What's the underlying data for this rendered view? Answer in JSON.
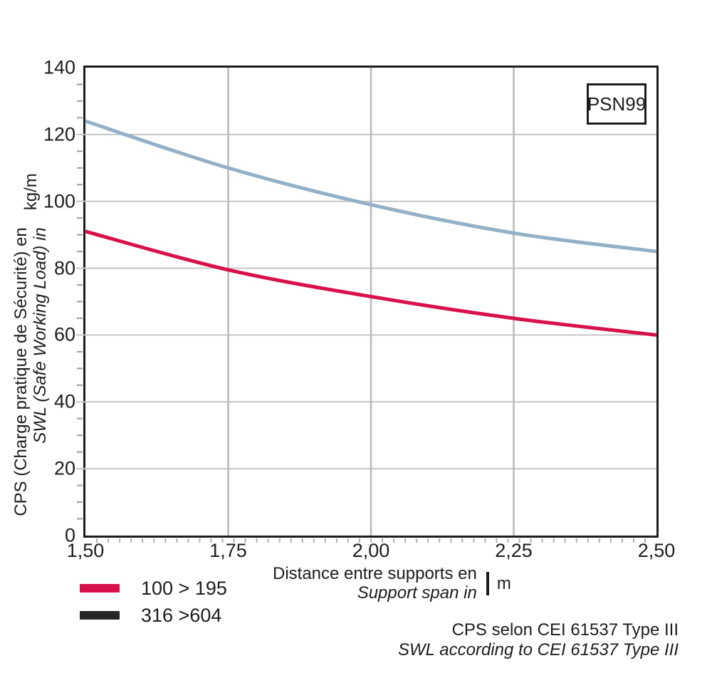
{
  "title_box": {
    "label": "PSN99"
  },
  "y_axis": {
    "label_line1": "CPS (Charge pratique de Sécurité) en",
    "label_line2": "SWL (Safe Working Load) in",
    "unit": "kg/m",
    "ticks": [
      "140",
      "120",
      "100",
      "80",
      "60",
      "40",
      "20",
      "0"
    ]
  },
  "x_axis": {
    "label_line1": "Distance entre supports en",
    "label_line2": "Support span in",
    "unit": "m",
    "ticks": [
      "1,50",
      "1,75",
      "2,00",
      "2,25",
      "2,50"
    ]
  },
  "legend": [
    {
      "label": "100 > 195",
      "color": "#d8104b"
    },
    {
      "label": "316 >604",
      "color": "#262625"
    }
  ],
  "footer": {
    "line1": "CPS selon CEI 61537 Type III",
    "line2": "SWL according to CEI 61537 Type III"
  },
  "colors": {
    "axis": "#1d1d1b",
    "grid_horizontal": "#c7c7c7",
    "grid_vertical": "#b8b8b8",
    "minor_tick_y": "#9c9c9c",
    "minor_tick_x": "#b0b0b0"
  },
  "chart_data": {
    "type": "line",
    "title": "PSN99",
    "xlabel": "Distance entre supports en / Support span in (m)",
    "ylabel": "CPS (Charge pratique de Sécurité) / SWL (Safe Working Load) (kg/m)",
    "xlim": [
      1.5,
      2.5
    ],
    "ylim": [
      0,
      140
    ],
    "grid": true,
    "legend_position": "bottom-left",
    "x": [
      1.5,
      1.75,
      2.0,
      2.25,
      2.5
    ],
    "x_gridlines": [
      1.75,
      2.0,
      2.25
    ],
    "y_gridlines": [
      20,
      40,
      60,
      80,
      100,
      120
    ],
    "y_minor_tick_step": 5,
    "x_minor_tick_step": 0.02,
    "series": [
      {
        "name": "blue-curve (no legend entry)",
        "legend_label": null,
        "color": "#94b0c7",
        "values": [
          124,
          110,
          99,
          90.5,
          85
        ]
      },
      {
        "name": "100 > 195",
        "legend_label": "100 > 195",
        "color": "#d8104b",
        "values": [
          91,
          79.5,
          71.5,
          65,
          60
        ]
      }
    ]
  }
}
